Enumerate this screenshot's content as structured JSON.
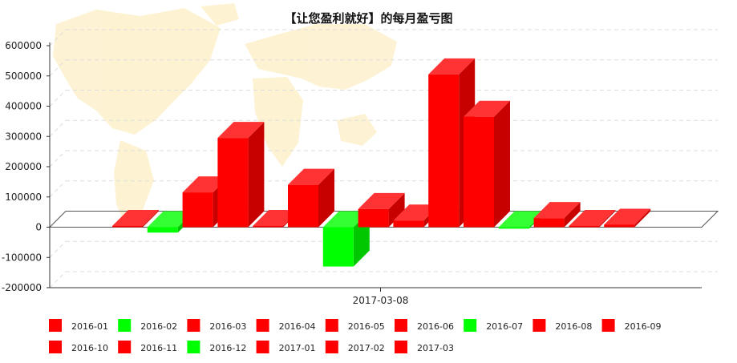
{
  "chart_data": {
    "type": "bar",
    "title": "【让您盈利就好】的每月盈亏图",
    "x_axis_label": "2017-03-08",
    "ylim": [
      -200000,
      600000
    ],
    "y_ticks": [
      -200000,
      -100000,
      0,
      100000,
      200000,
      300000,
      400000,
      500000,
      600000
    ],
    "grid": true,
    "three_d": true,
    "legend_position": "bottom",
    "series": [
      {
        "name": "2016-01",
        "value": 4000,
        "color": "#ff0000"
      },
      {
        "name": "2016-02",
        "value": -18000,
        "color": "#00ff00"
      },
      {
        "name": "2016-03",
        "value": 115000,
        "color": "#ff0000"
      },
      {
        "name": "2016-04",
        "value": 295000,
        "color": "#ff0000"
      },
      {
        "name": "2016-05",
        "value": 4000,
        "color": "#ff0000"
      },
      {
        "name": "2016-06",
        "value": 140000,
        "color": "#ff0000"
      },
      {
        "name": "2016-07",
        "value": -130000,
        "color": "#00ff00"
      },
      {
        "name": "2016-08",
        "value": 60000,
        "color": "#ff0000"
      },
      {
        "name": "2016-09",
        "value": 22000,
        "color": "#ff0000"
      },
      {
        "name": "2016-10",
        "value": 505000,
        "color": "#ff0000"
      },
      {
        "name": "2016-11",
        "value": 365000,
        "color": "#ff0000"
      },
      {
        "name": "2016-12",
        "value": -5000,
        "color": "#00ff00"
      },
      {
        "name": "2017-01",
        "value": 30000,
        "color": "#ff0000"
      },
      {
        "name": "2017-02",
        "value": 4000,
        "color": "#ff0000"
      },
      {
        "name": "2017-03",
        "value": 8000,
        "color": "#ff0000"
      }
    ]
  }
}
